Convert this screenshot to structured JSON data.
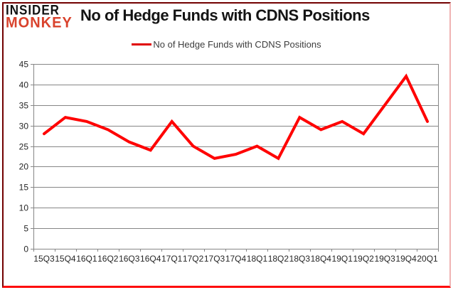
{
  "logo": {
    "line1": "INSIDER",
    "line2": "MONKEY"
  },
  "header": {
    "title": "No of Hedge Funds with CDNS Positions"
  },
  "legend": {
    "label": "No of Hedge Funds with CDNS Positions"
  },
  "colors": {
    "line": "#ff0000",
    "legend_swatch": "#e00000",
    "grid": "#868686",
    "text": "#262626",
    "logo_monkey": "#d9422c"
  },
  "chart_data": {
    "type": "line",
    "title": "No of Hedge Funds with CDNS Positions",
    "series_name": "No of Hedge Funds with CDNS Positions",
    "categories": [
      "15Q3",
      "15Q4",
      "16Q1",
      "16Q2",
      "16Q3",
      "16Q4",
      "17Q1",
      "17Q2",
      "17Q3",
      "17Q4",
      "18Q1",
      "18Q2",
      "18Q3",
      "18Q4",
      "19Q1",
      "19Q2",
      "19Q3",
      "19Q4",
      "20Q1"
    ],
    "values": [
      28,
      32,
      31,
      29,
      26,
      24,
      31,
      25,
      22,
      23,
      25,
      22,
      32,
      29,
      31,
      28,
      35,
      42,
      31
    ],
    "ylim": [
      0,
      45
    ],
    "ytick_step": 5,
    "xlabel": "",
    "ylabel": "",
    "grid": "on",
    "legend_position": "top-center",
    "line_color": "#ff0000",
    "grid_color": "#868686"
  }
}
